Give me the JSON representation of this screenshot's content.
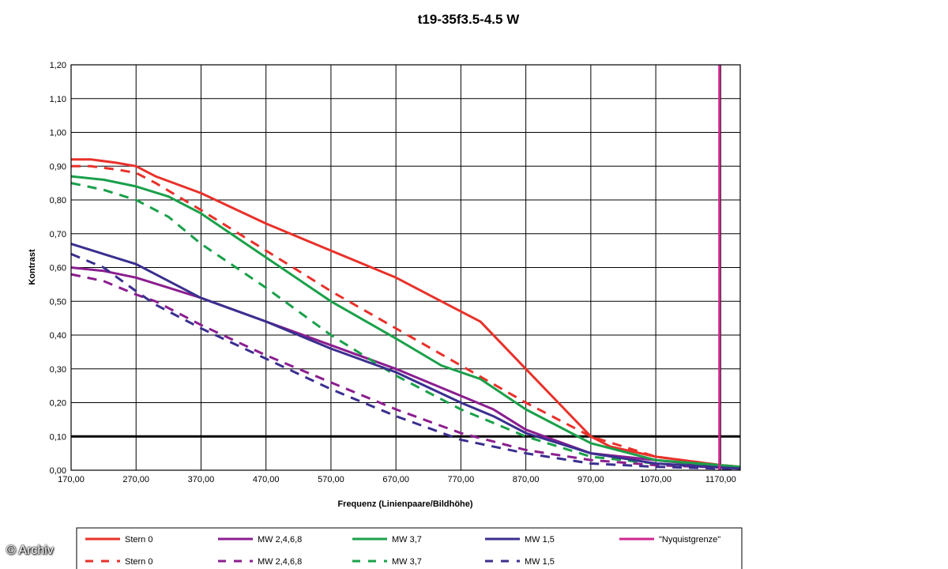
{
  "chart_data": {
    "type": "line",
    "title": "t19-35f3.5-4.5 W",
    "xlabel": "Frequenz (Linienpaare/Bildhöhe)",
    "ylabel": "Kontrast",
    "xlim": [
      170,
      1200
    ],
    "ylim": [
      0,
      1.2
    ],
    "grid": true,
    "legend_position": "bottom",
    "x_ticks": [
      "170,00",
      "270,00",
      "370,00",
      "470,00",
      "570,00",
      "670,00",
      "770,00",
      "870,00",
      "970,00",
      "1070,00",
      "1170,00"
    ],
    "y_ticks": [
      "0,00",
      "0,10",
      "0,20",
      "0,30",
      "0,40",
      "0,50",
      "0,60",
      "0,70",
      "0,80",
      "0,90",
      "1,00",
      "1,10",
      "1,20"
    ],
    "threshold_line": 0.1,
    "nyquist_x": 1168,
    "series": [
      {
        "name": "Stern 0",
        "color": "#e8312a",
        "dash": false,
        "points": [
          [
            170,
            0.92
          ],
          [
            200,
            0.92
          ],
          [
            240,
            0.91
          ],
          [
            270,
            0.9
          ],
          [
            300,
            0.87
          ],
          [
            370,
            0.82
          ],
          [
            470,
            0.73
          ],
          [
            570,
            0.65
          ],
          [
            670,
            0.57
          ],
          [
            740,
            0.5
          ],
          [
            800,
            0.44
          ],
          [
            870,
            0.3
          ],
          [
            920,
            0.2
          ],
          [
            970,
            0.1
          ],
          [
            1000,
            0.07
          ],
          [
            1070,
            0.04
          ],
          [
            1170,
            0.015
          ],
          [
            1200,
            0.01
          ]
        ]
      },
      {
        "name": "Stern 0",
        "color": "#e8312a",
        "dash": true,
        "points": [
          [
            170,
            0.9
          ],
          [
            200,
            0.9
          ],
          [
            240,
            0.89
          ],
          [
            270,
            0.88
          ],
          [
            300,
            0.85
          ],
          [
            370,
            0.77
          ],
          [
            470,
            0.65
          ],
          [
            570,
            0.53
          ],
          [
            670,
            0.42
          ],
          [
            770,
            0.31
          ],
          [
            870,
            0.2
          ],
          [
            970,
            0.1
          ],
          [
            1070,
            0.04
          ],
          [
            1170,
            0.015
          ],
          [
            1200,
            0.01
          ]
        ]
      },
      {
        "name": "MW 2,4,6,8",
        "color": "#8b1e8f",
        "dash": false,
        "points": [
          [
            170,
            0.6
          ],
          [
            220,
            0.59
          ],
          [
            270,
            0.57
          ],
          [
            320,
            0.54
          ],
          [
            370,
            0.51
          ],
          [
            470,
            0.44
          ],
          [
            570,
            0.37
          ],
          [
            670,
            0.3
          ],
          [
            770,
            0.22
          ],
          [
            820,
            0.18
          ],
          [
            870,
            0.12
          ],
          [
            970,
            0.05
          ],
          [
            1070,
            0.03
          ],
          [
            1170,
            0.01
          ],
          [
            1200,
            0.008
          ]
        ]
      },
      {
        "name": "MW 2,4,6,8",
        "color": "#8b1e8f",
        "dash": true,
        "points": [
          [
            170,
            0.58
          ],
          [
            220,
            0.56
          ],
          [
            270,
            0.52
          ],
          [
            300,
            0.5
          ],
          [
            370,
            0.43
          ],
          [
            470,
            0.34
          ],
          [
            570,
            0.26
          ],
          [
            670,
            0.18
          ],
          [
            770,
            0.11
          ],
          [
            870,
            0.06
          ],
          [
            970,
            0.03
          ],
          [
            1070,
            0.015
          ],
          [
            1170,
            0.008
          ],
          [
            1200,
            0.005
          ]
        ]
      },
      {
        "name": "MW 3,7",
        "color": "#1aa04a",
        "dash": false,
        "points": [
          [
            170,
            0.87
          ],
          [
            220,
            0.86
          ],
          [
            270,
            0.84
          ],
          [
            320,
            0.81
          ],
          [
            370,
            0.76
          ],
          [
            470,
            0.63
          ],
          [
            570,
            0.5
          ],
          [
            670,
            0.39
          ],
          [
            740,
            0.31
          ],
          [
            800,
            0.27
          ],
          [
            870,
            0.18
          ],
          [
            970,
            0.08
          ],
          [
            1070,
            0.03
          ],
          [
            1170,
            0.015
          ],
          [
            1200,
            0.01
          ]
        ]
      },
      {
        "name": "MW 3,7",
        "color": "#1aa04a",
        "dash": true,
        "points": [
          [
            170,
            0.85
          ],
          [
            220,
            0.83
          ],
          [
            270,
            0.8
          ],
          [
            320,
            0.75
          ],
          [
            370,
            0.67
          ],
          [
            470,
            0.54
          ],
          [
            570,
            0.4
          ],
          [
            670,
            0.28
          ],
          [
            770,
            0.18
          ],
          [
            870,
            0.1
          ],
          [
            970,
            0.04
          ],
          [
            1070,
            0.02
          ],
          [
            1170,
            0.01
          ],
          [
            1200,
            0.008
          ]
        ]
      },
      {
        "name": "MW 1,5",
        "color": "#3a2f8f",
        "dash": false,
        "points": [
          [
            170,
            0.67
          ],
          [
            220,
            0.64
          ],
          [
            270,
            0.61
          ],
          [
            320,
            0.56
          ],
          [
            370,
            0.51
          ],
          [
            470,
            0.44
          ],
          [
            570,
            0.36
          ],
          [
            670,
            0.29
          ],
          [
            770,
            0.2
          ],
          [
            820,
            0.16
          ],
          [
            870,
            0.11
          ],
          [
            970,
            0.05
          ],
          [
            1070,
            0.02
          ],
          [
            1170,
            0.008
          ],
          [
            1200,
            0.005
          ]
        ]
      },
      {
        "name": "MW 1,5",
        "color": "#3a2f8f",
        "dash": true,
        "points": [
          [
            170,
            0.64
          ],
          [
            220,
            0.6
          ],
          [
            270,
            0.53
          ],
          [
            300,
            0.49
          ],
          [
            370,
            0.42
          ],
          [
            470,
            0.33
          ],
          [
            570,
            0.24
          ],
          [
            670,
            0.16
          ],
          [
            770,
            0.09
          ],
          [
            870,
            0.05
          ],
          [
            970,
            0.02
          ],
          [
            1070,
            0.01
          ],
          [
            1170,
            0.005
          ],
          [
            1200,
            0.003
          ]
        ]
      }
    ],
    "legend": [
      {
        "label": "Stern 0",
        "color": "#e8312a",
        "dash": false
      },
      {
        "label": "MW 2,4,6,8",
        "color": "#8b1e8f",
        "dash": false
      },
      {
        "label": "MW 3,7",
        "color": "#1aa04a",
        "dash": false
      },
      {
        "label": "MW 1,5",
        "color": "#3a2f8f",
        "dash": false
      },
      {
        "label": "\"Nyquistgrenze\"",
        "color": "#d0268f",
        "dash": false
      },
      {
        "label": "Stern 0",
        "color": "#e8312a",
        "dash": true
      },
      {
        "label": "MW 2,4,6,8",
        "color": "#8b1e8f",
        "dash": true
      },
      {
        "label": "MW 3,7",
        "color": "#1aa04a",
        "dash": true
      },
      {
        "label": "MW 1,5",
        "color": "#3a2f8f",
        "dash": true
      }
    ]
  },
  "watermark": "© Archiv"
}
